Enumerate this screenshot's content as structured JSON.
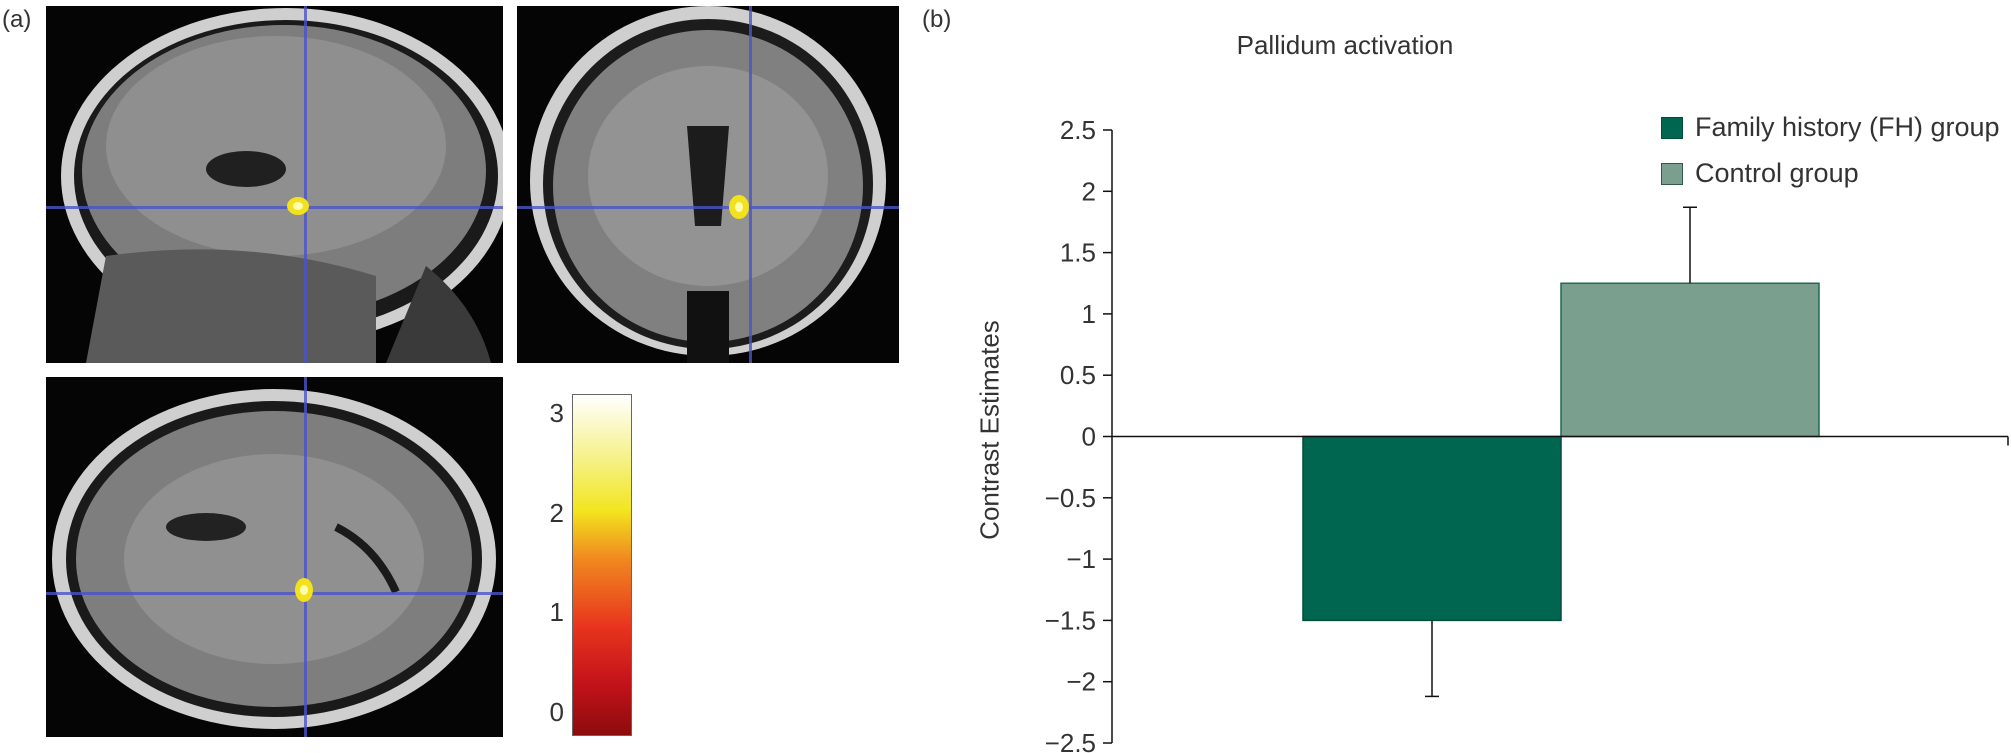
{
  "panels": {
    "a_label": "(a)",
    "b_label": "(b)"
  },
  "colorbar": {
    "ticks": [
      "3",
      "2",
      "1",
      "0"
    ],
    "colors": [
      "#8c0c0c",
      "#e8351e",
      "#f2e51f",
      "#ffffff"
    ]
  },
  "chart_data": {
    "type": "bar",
    "title": "Pallidum activation",
    "xlabel": "",
    "ylabel": "Contrast Estimates",
    "ylim": [
      -2.5,
      2.5
    ],
    "yticks": [
      2.5,
      2,
      1.5,
      1,
      0.5,
      0,
      -0.5,
      -1,
      -1.5,
      -2,
      -2.5
    ],
    "ytick_labels": [
      "2.5",
      "2",
      "1.5",
      "1",
      "0.5",
      "0",
      "−0.5",
      "−1",
      "−1.5",
      "−2",
      "−2.5"
    ],
    "grid": false,
    "legend_position": "top-right",
    "series": [
      {
        "name": "Family history (FH) group",
        "values": [
          -1.5
        ],
        "error": [
          0.62
        ],
        "color": "#006650"
      },
      {
        "name": "Control group",
        "values": [
          1.25
        ],
        "error": [
          0.62
        ],
        "color": "#7a9f8e"
      }
    ]
  }
}
